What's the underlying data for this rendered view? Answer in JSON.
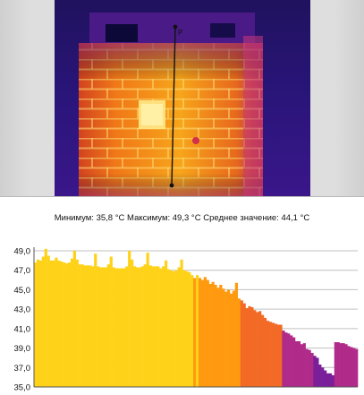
{
  "thermal_image": {
    "line_marker_label": "P"
  },
  "stats": {
    "min_label": "Минимум:",
    "min_value": "35,8",
    "max_label": "Максимум:",
    "max_value": "49,3",
    "avg_label": "Среднее значение:",
    "avg_value": "44,1",
    "unit": "°C"
  },
  "colors": {
    "profile_hot": "#ffd21a",
    "profile_mid": "#ff9a10",
    "profile_warm": "#f26a25",
    "profile_cool": "#b02a8a",
    "profile_cold": "#7a1e9a",
    "grid": "#c0c0c0"
  },
  "chart_data": {
    "type": "bar",
    "title": "",
    "xlabel": "",
    "ylabel": "",
    "ylim": [
      35.0,
      49.0
    ],
    "y_ticks": [
      "49,0",
      "47,0",
      "45,0",
      "43,0",
      "41,0",
      "39,0",
      "37,0",
      "35,0"
    ],
    "grid": true,
    "values": [
      47.8,
      48.1,
      48.0,
      48.4,
      49.2,
      48.5,
      48.0,
      48.0,
      48.3,
      48.0,
      47.9,
      47.8,
      47.7,
      47.8,
      48.2,
      49.0,
      48.1,
      47.6,
      47.6,
      47.5,
      47.5,
      47.5,
      47.4,
      48.7,
      47.4,
      47.3,
      47.3,
      47.3,
      47.6,
      48.4,
      47.3,
      47.2,
      47.2,
      47.2,
      47.2,
      47.4,
      49.0,
      48.1,
      47.4,
      47.3,
      47.3,
      47.4,
      47.6,
      48.8,
      47.5,
      47.4,
      47.4,
      47.4,
      47.2,
      47.4,
      48.0,
      47.1,
      47.0,
      46.9,
      47.0,
      47.3,
      48.1,
      47.0,
      46.9,
      46.8,
      46.5,
      46.2,
      46.5,
      46.2,
      46.0,
      46.3,
      46.0,
      45.6,
      45.8,
      45.5,
      45.2,
      45.5,
      45.1,
      44.8,
      45.0,
      44.6,
      44.9,
      45.7,
      44.1,
      43.9,
      43.6,
      43.1,
      43.3,
      43.2,
      42.9,
      42.7,
      42.8,
      42.4,
      42.1,
      41.8,
      41.7,
      41.6,
      41.5,
      41.4,
      41.4,
      40.8,
      40.6,
      40.5,
      40.3,
      40.1,
      39.7,
      39.7,
      39.4,
      39.5,
      38.9,
      38.8,
      38.5,
      38.2,
      38.0,
      37.3,
      37.0,
      36.7,
      36.4,
      36.4,
      36.2,
      39.6,
      39.6,
      39.5,
      39.5,
      39.4,
      39.2,
      39.1,
      39.0,
      38.9
    ]
  }
}
